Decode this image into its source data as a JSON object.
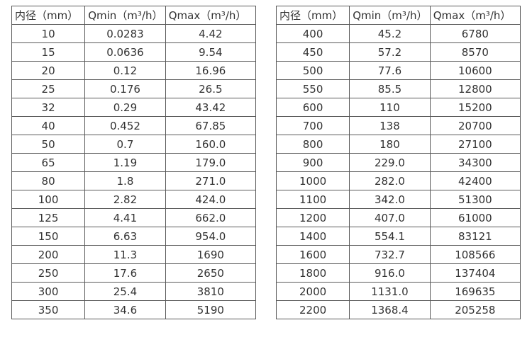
{
  "tables": [
    {
      "name": "flow-rate-table-small-diameters",
      "headers": [
        "内径（mm）",
        "Qmin（m³/h）",
        "Qmax（m³/h）"
      ],
      "rows": [
        [
          "10",
          "0.0283",
          "4.42"
        ],
        [
          "15",
          "0.0636",
          "9.54"
        ],
        [
          "20",
          "0.12",
          "16.96"
        ],
        [
          "25",
          "0.176",
          "26.5"
        ],
        [
          "32",
          "0.29",
          "43.42"
        ],
        [
          "40",
          "0.452",
          "67.85"
        ],
        [
          "50",
          "0.7",
          "160.0"
        ],
        [
          "65",
          "1.19",
          "179.0"
        ],
        [
          "80",
          "1.8",
          "271.0"
        ],
        [
          "100",
          "2.82",
          "424.0"
        ],
        [
          "125",
          "4.41",
          "662.0"
        ],
        [
          "150",
          "6.63",
          "954.0"
        ],
        [
          "200",
          "11.3",
          "1690"
        ],
        [
          "250",
          "17.6",
          "2650"
        ],
        [
          "300",
          "25.4",
          "3810"
        ],
        [
          "350",
          "34.6",
          "5190"
        ]
      ]
    },
    {
      "name": "flow-rate-table-large-diameters",
      "headers": [
        "内径（mm）",
        "Qmin（m³/h）",
        "Qmax（m³/h）"
      ],
      "rows": [
        [
          "400",
          "45.2",
          "6780"
        ],
        [
          "450",
          "57.2",
          "8570"
        ],
        [
          "500",
          "77.6",
          "10600"
        ],
        [
          "550",
          "85.5",
          "12800"
        ],
        [
          "600",
          "110",
          "15200"
        ],
        [
          "700",
          "138",
          "20700"
        ],
        [
          "800",
          "180",
          "27100"
        ],
        [
          "900",
          "229.0",
          "34300"
        ],
        [
          "1000",
          "282.0",
          "42400"
        ],
        [
          "1100",
          "342.0",
          "51300"
        ],
        [
          "1200",
          "407.0",
          "61000"
        ],
        [
          "1400",
          "554.1",
          "83121"
        ],
        [
          "1600",
          "732.7",
          "108566"
        ],
        [
          "1800",
          "916.0",
          "137404"
        ],
        [
          "2000",
          "1131.0",
          "169635"
        ],
        [
          "2200",
          "1368.4",
          "205258"
        ]
      ]
    }
  ]
}
